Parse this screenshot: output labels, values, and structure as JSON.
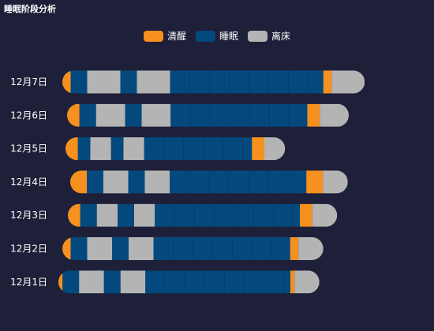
{
  "chart_data": {
    "type": "bar",
    "title": "睡眠阶段分析",
    "categories": [
      "12月7日",
      "12月6日",
      "12月5日",
      "12月4日",
      "12月3日",
      "12月2日",
      "12月1日"
    ],
    "legend": [
      {
        "name": "清醒",
        "color": "#f6901e"
      },
      {
        "name": "睡眠",
        "color": "#04497e"
      },
      {
        "name": "离床",
        "color": "#b4b4b4"
      }
    ],
    "note": "Horizontal sleep-stage timelines. Each segment: state (awake | sleep | outofbed) and duration in arbitrary time units, left to right.",
    "series": [
      {
        "name": "12月7日",
        "segments": [
          [
            "awake",
            1
          ],
          [
            "sleep",
            2
          ],
          [
            "outofbed",
            4
          ],
          [
            "sleep",
            2
          ],
          [
            "outofbed",
            4
          ],
          [
            "sleep",
            18.5
          ],
          [
            "awake",
            1
          ],
          [
            "outofbed",
            4
          ]
        ]
      },
      {
        "name": "12月6日",
        "segments": [
          [
            "awake",
            1.5
          ],
          [
            "sleep",
            2
          ],
          [
            "outofbed",
            3.5
          ],
          [
            "sleep",
            2
          ],
          [
            "outofbed",
            3.5
          ],
          [
            "sleep",
            16.5
          ],
          [
            "awake",
            1.5
          ],
          [
            "outofbed",
            3.5
          ]
        ]
      },
      {
        "name": "12月5日",
        "segments": [
          [
            "awake",
            1.5
          ],
          [
            "sleep",
            1.5
          ],
          [
            "outofbed",
            2.5
          ],
          [
            "sleep",
            1.5
          ],
          [
            "outofbed",
            2.5
          ],
          [
            "sleep",
            13
          ],
          [
            "awake",
            1.5
          ],
          [
            "outofbed",
            2.5
          ]
        ]
      },
      {
        "name": "12月4日",
        "segments": [
          [
            "awake",
            2
          ],
          [
            "sleep",
            2
          ],
          [
            "outofbed",
            3
          ],
          [
            "sleep",
            2
          ],
          [
            "outofbed",
            3
          ],
          [
            "sleep",
            16.5
          ],
          [
            "awake",
            2
          ],
          [
            "outofbed",
            3
          ]
        ]
      },
      {
        "name": "12月3日",
        "segments": [
          [
            "awake",
            1.5
          ],
          [
            "sleep",
            2
          ],
          [
            "outofbed",
            2.5
          ],
          [
            "sleep",
            2
          ],
          [
            "outofbed",
            2.5
          ],
          [
            "sleep",
            17.5
          ],
          [
            "awake",
            1.5
          ],
          [
            "outofbed",
            3
          ]
        ]
      },
      {
        "name": "12月2日",
        "segments": [
          [
            "awake",
            1
          ],
          [
            "sleep",
            2
          ],
          [
            "outofbed",
            3
          ],
          [
            "sleep",
            2
          ],
          [
            "outofbed",
            3
          ],
          [
            "sleep",
            16.5
          ],
          [
            "awake",
            1
          ],
          [
            "outofbed",
            3
          ]
        ]
      },
      {
        "name": "12月1日",
        "segments": [
          [
            "awake",
            0.5
          ],
          [
            "sleep",
            2
          ],
          [
            "outofbed",
            3
          ],
          [
            "sleep",
            2
          ],
          [
            "outofbed",
            3
          ],
          [
            "sleep",
            17.5
          ],
          [
            "awake",
            0.5
          ],
          [
            "outofbed",
            3
          ]
        ]
      }
    ]
  }
}
